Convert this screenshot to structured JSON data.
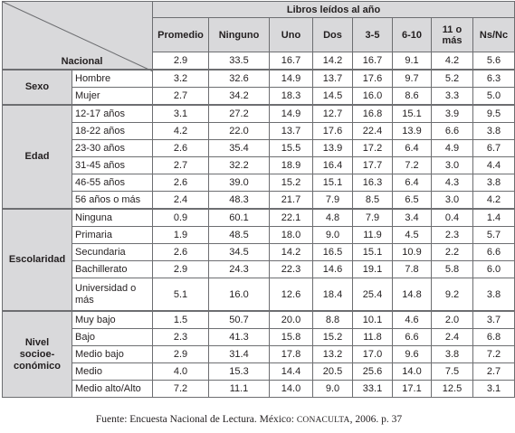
{
  "header": {
    "group_title": "Libros leídos al año",
    "columns": [
      "Promedio",
      "Ninguno",
      "Uno",
      "Dos",
      "3-5",
      "6-10",
      "11 o más",
      "Ns/Nc"
    ]
  },
  "nacional": {
    "label": "Nacional",
    "values": [
      "2.9",
      "33.5",
      "16.7",
      "14.2",
      "16.7",
      "9.1",
      "4.2",
      "5.6"
    ]
  },
  "groups": [
    {
      "label": "Sexo",
      "rows": [
        {
          "cat": "Hombre",
          "values": [
            "3.2",
            "32.6",
            "14.9",
            "13.7",
            "17.6",
            "9.7",
            "5.2",
            "6.3"
          ]
        },
        {
          "cat": "Mujer",
          "values": [
            "2.7",
            "34.2",
            "18.3",
            "14.5",
            "16.0",
            "8.6",
            "3.3",
            "5.0"
          ]
        }
      ]
    },
    {
      "label": "Edad",
      "rows": [
        {
          "cat": "12-17 años",
          "values": [
            "3.1",
            "27.2",
            "14.9",
            "12.7",
            "16.8",
            "15.1",
            "3.9",
            "9.5"
          ]
        },
        {
          "cat": "18-22 años",
          "values": [
            "4.2",
            "22.0",
            "13.7",
            "17.6",
            "22.4",
            "13.9",
            "6.6",
            "3.8"
          ]
        },
        {
          "cat": "23-30 años",
          "values": [
            "2.6",
            "35.4",
            "15.5",
            "13.9",
            "17.2",
            "6.4",
            "4.9",
            "6.7"
          ]
        },
        {
          "cat": "31-45 años",
          "values": [
            "2.7",
            "32.2",
            "18.9",
            "16.4",
            "17.7",
            "7.2",
            "3.0",
            "4.4"
          ]
        },
        {
          "cat": "46-55 años",
          "values": [
            "2.6",
            "39.0",
            "15.2",
            "15.1",
            "16.3",
            "6.4",
            "4.3",
            "3.8"
          ]
        },
        {
          "cat": "56 años o más",
          "values": [
            "2.4",
            "48.3",
            "21.7",
            "7.9",
            "8.5",
            "6.5",
            "3.0",
            "4.2"
          ]
        }
      ]
    },
    {
      "label": "Escolaridad",
      "rows": [
        {
          "cat": "Ninguna",
          "values": [
            "0.9",
            "60.1",
            "22.1",
            "4.8",
            "7.9",
            "3.4",
            "0.4",
            "1.4"
          ]
        },
        {
          "cat": "Primaria",
          "values": [
            "1.9",
            "48.5",
            "18.0",
            "9.0",
            "11.9",
            "4.5",
            "2.3",
            "5.7"
          ]
        },
        {
          "cat": "Secundaria",
          "values": [
            "2.6",
            "34.5",
            "14.2",
            "16.5",
            "15.1",
            "10.9",
            "2.2",
            "6.6"
          ]
        },
        {
          "cat": "Bachillerato",
          "values": [
            "2.9",
            "24.3",
            "22.3",
            "14.6",
            "19.1",
            "7.8",
            "5.8",
            "6.0"
          ]
        },
        {
          "cat": "Universidad o más",
          "values": [
            "5.1",
            "16.0",
            "12.6",
            "18.4",
            "25.4",
            "14.8",
            "9.2",
            "3.8"
          ]
        }
      ]
    },
    {
      "label": "Nivel socioe-conómico",
      "rows": [
        {
          "cat": "Muy bajo",
          "values": [
            "1.5",
            "50.7",
            "20.0",
            "8.8",
            "10.1",
            "4.6",
            "2.0",
            "3.7"
          ]
        },
        {
          "cat": "Bajo",
          "values": [
            "2.3",
            "41.3",
            "15.8",
            "15.2",
            "11.8",
            "6.6",
            "2.4",
            "6.8"
          ]
        },
        {
          "cat": "Medio bajo",
          "values": [
            "2.9",
            "31.4",
            "17.8",
            "13.2",
            "17.0",
            "9.6",
            "3.8",
            "7.2"
          ]
        },
        {
          "cat": "Medio",
          "values": [
            "4.0",
            "15.3",
            "14.4",
            "20.5",
            "25.6",
            "14.0",
            "7.5",
            "2.7"
          ]
        },
        {
          "cat": "Medio alto/Alto",
          "values": [
            "7.2",
            "11.1",
            "14.0",
            "9.0",
            "33.1",
            "17.1",
            "12.5",
            "3.1"
          ]
        }
      ]
    }
  ],
  "footer": {
    "before": "Fuente: Encuesta Nacional de Lectura. México: ",
    "org": "CONACULTA",
    "after": ", 2006. p. 37"
  }
}
